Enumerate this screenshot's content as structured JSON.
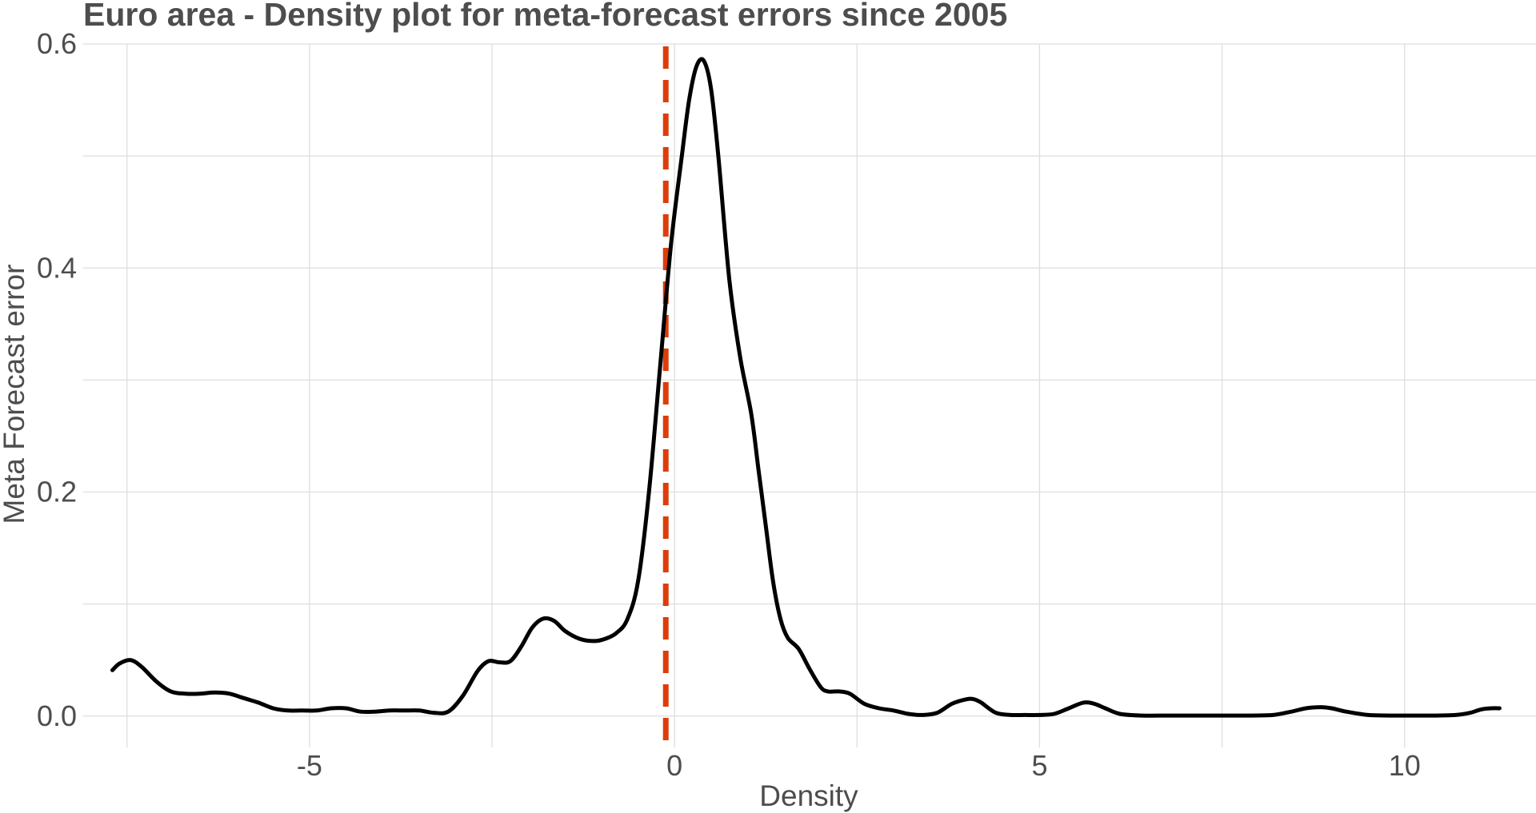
{
  "chart_data": {
    "type": "line",
    "title": "Euro area - Density plot for meta-forecast errors since 2005",
    "xlabel": "Density",
    "ylabel": "Meta Forecast error",
    "xlim": [
      -8.1,
      11.8
    ],
    "ylim": [
      -0.028,
      0.6
    ],
    "x_ticks": [
      -5,
      0,
      5,
      10
    ],
    "x_tick_labels": [
      "-5",
      "0",
      "5",
      "10"
    ],
    "y_ticks": [
      0.0,
      0.2,
      0.4,
      0.6
    ],
    "y_tick_labels": [
      "0.0",
      "0.2",
      "0.4",
      "0.6"
    ],
    "grid": true,
    "legend": "none",
    "colors": {
      "density": "#000000",
      "reference_line": "#dc3d0a",
      "grid": "#dedede",
      "text": "#4d4d4d"
    },
    "reference_line": {
      "orientation": "vertical",
      "x": -0.12,
      "style": "dashed"
    },
    "series": [
      {
        "x": [
          -7.7,
          -7.6,
          -7.45,
          -7.3,
          -7.1,
          -6.9,
          -6.7,
          -6.5,
          -6.3,
          -6.1,
          -5.9,
          -5.7,
          -5.5,
          -5.3,
          -5.1,
          -4.9,
          -4.7,
          -4.5,
          -4.3,
          -4.1,
          -3.9,
          -3.7,
          -3.5,
          -3.3,
          -3.1,
          -2.9,
          -2.7,
          -2.55,
          -2.4,
          -2.25,
          -2.1,
          -1.95,
          -1.8,
          -1.65,
          -1.5,
          -1.3,
          -1.1,
          -0.95,
          -0.8,
          -0.65,
          -0.5,
          -0.35,
          -0.2,
          -0.05,
          0.1,
          0.2,
          0.3,
          0.4,
          0.5,
          0.6,
          0.75,
          0.9,
          1.05,
          1.15,
          1.25,
          1.35,
          1.45,
          1.55,
          1.7,
          1.85,
          2.0,
          2.1,
          2.25,
          2.4,
          2.6,
          2.8,
          3.0,
          3.2,
          3.4,
          3.6,
          3.8,
          4.0,
          4.1,
          4.2,
          4.4,
          4.6,
          4.8,
          5.0,
          5.2,
          5.4,
          5.6,
          5.75,
          5.9,
          6.1,
          6.4,
          6.8,
          7.2,
          7.6,
          7.9,
          8.2,
          8.45,
          8.65,
          8.85,
          9.0,
          9.2,
          9.5,
          9.8,
          10.1,
          10.4,
          10.7,
          10.9,
          11.05,
          11.2,
          11.3
        ],
        "y": [
          0.041,
          0.047,
          0.05,
          0.044,
          0.031,
          0.022,
          0.02,
          0.02,
          0.021,
          0.02,
          0.016,
          0.012,
          0.007,
          0.005,
          0.005,
          0.005,
          0.007,
          0.007,
          0.004,
          0.004,
          0.005,
          0.005,
          0.005,
          0.003,
          0.004,
          0.018,
          0.04,
          0.049,
          0.048,
          0.049,
          0.062,
          0.079,
          0.087,
          0.085,
          0.076,
          0.069,
          0.067,
          0.069,
          0.074,
          0.086,
          0.12,
          0.2,
          0.31,
          0.42,
          0.5,
          0.55,
          0.58,
          0.585,
          0.56,
          0.5,
          0.39,
          0.32,
          0.27,
          0.22,
          0.17,
          0.12,
          0.087,
          0.07,
          0.06,
          0.042,
          0.026,
          0.022,
          0.022,
          0.02,
          0.011,
          0.007,
          0.005,
          0.002,
          0.001,
          0.003,
          0.011,
          0.015,
          0.015,
          0.012,
          0.003,
          0.001,
          0.001,
          0.001,
          0.002,
          0.007,
          0.012,
          0.011,
          0.007,
          0.002,
          0.0005,
          0.0005,
          0.0005,
          0.0005,
          0.0005,
          0.001,
          0.004,
          0.007,
          0.008,
          0.007,
          0.004,
          0.001,
          0.0005,
          0.0005,
          0.0005,
          0.001,
          0.003,
          0.006,
          0.007,
          0.007
        ]
      }
    ]
  }
}
